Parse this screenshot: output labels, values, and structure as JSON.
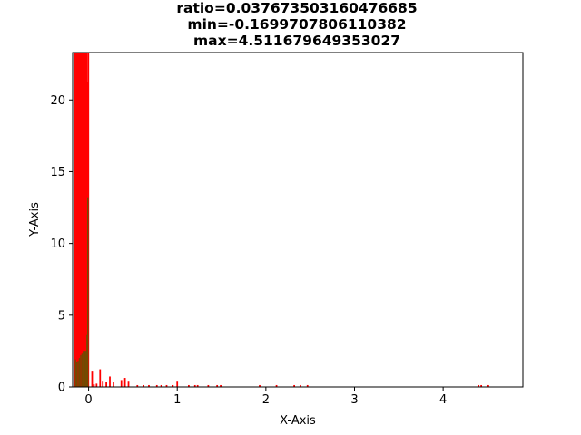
{
  "chart_data": {
    "type": "bar",
    "title_lines": [
      "ratio=0.037673503160476685",
      "min=-0.1699707806110382",
      "max=4.511679649353027"
    ],
    "xlabel": "X-Axis",
    "ylabel": "Y-Axis",
    "xlim": [
      -0.18,
      4.9
    ],
    "ylim": [
      0,
      23.3
    ],
    "xticks": [
      0,
      1,
      2,
      3,
      4
    ],
    "yticks": [
      0,
      5,
      10,
      15,
      20
    ],
    "grid": false,
    "legend": "none",
    "series": [
      {
        "color": "#ff0000",
        "edge": "#ff0000",
        "bars": [
          {
            "x": -0.155,
            "y": 23.3
          },
          {
            "x": -0.14,
            "y": 23.3
          },
          {
            "x": -0.125,
            "y": 23.3
          },
          {
            "x": -0.11,
            "y": 23.3
          },
          {
            "x": -0.095,
            "y": 23.3
          },
          {
            "x": -0.08,
            "y": 23.3
          },
          {
            "x": -0.065,
            "y": 23.3
          },
          {
            "x": -0.05,
            "y": 23.3
          },
          {
            "x": -0.035,
            "y": 23.3
          },
          {
            "x": -0.022,
            "y": 23.3
          },
          {
            "x": -0.012,
            "y": 21.2
          },
          {
            "x": -0.003,
            "y": 23.3
          },
          {
            "x": 0.04,
            "y": 1.1
          },
          {
            "x": 0.06,
            "y": 0.15
          },
          {
            "x": 0.09,
            "y": 0.2
          },
          {
            "x": 0.13,
            "y": 1.2
          },
          {
            "x": 0.16,
            "y": 0.4
          },
          {
            "x": 0.2,
            "y": 0.35
          },
          {
            "x": 0.24,
            "y": 0.7
          },
          {
            "x": 0.28,
            "y": 0.3
          },
          {
            "x": 0.37,
            "y": 0.45
          },
          {
            "x": 0.41,
            "y": 0.6
          },
          {
            "x": 0.45,
            "y": 0.4
          },
          {
            "x": 0.55,
            "y": 0.1
          },
          {
            "x": 0.62,
            "y": 0.1
          },
          {
            "x": 0.68,
            "y": 0.1
          },
          {
            "x": 0.77,
            "y": 0.1
          },
          {
            "x": 0.82,
            "y": 0.1
          },
          {
            "x": 0.88,
            "y": 0.1
          },
          {
            "x": 0.95,
            "y": 0.1
          },
          {
            "x": 1.0,
            "y": 0.4
          },
          {
            "x": 1.13,
            "y": 0.1
          },
          {
            "x": 1.2,
            "y": 0.1
          },
          {
            "x": 1.23,
            "y": 0.1
          },
          {
            "x": 1.35,
            "y": 0.1
          },
          {
            "x": 1.45,
            "y": 0.1
          },
          {
            "x": 1.49,
            "y": 0.1
          },
          {
            "x": 1.93,
            "y": 0.1
          },
          {
            "x": 2.12,
            "y": 0.1
          },
          {
            "x": 2.32,
            "y": 0.1
          },
          {
            "x": 2.39,
            "y": 0.1
          },
          {
            "x": 2.47,
            "y": 0.1
          },
          {
            "x": 4.4,
            "y": 0.1
          },
          {
            "x": 4.43,
            "y": 0.1
          },
          {
            "x": 4.51,
            "y": 0.1
          }
        ]
      },
      {
        "color": "#2d7a00",
        "edge": "#8b3a00",
        "bars": [
          {
            "x": -0.148,
            "y": 1.9
          },
          {
            "x": -0.133,
            "y": 1.7
          },
          {
            "x": -0.118,
            "y": 1.8
          },
          {
            "x": -0.103,
            "y": 2.0
          },
          {
            "x": -0.088,
            "y": 2.2
          },
          {
            "x": -0.073,
            "y": 2.3
          },
          {
            "x": -0.058,
            "y": 2.5
          },
          {
            "x": -0.043,
            "y": 2.5
          },
          {
            "x": -0.028,
            "y": 2.5
          },
          {
            "x": -0.017,
            "y": 3.6
          },
          {
            "x": -0.008,
            "y": 13.2
          }
        ]
      }
    ]
  }
}
